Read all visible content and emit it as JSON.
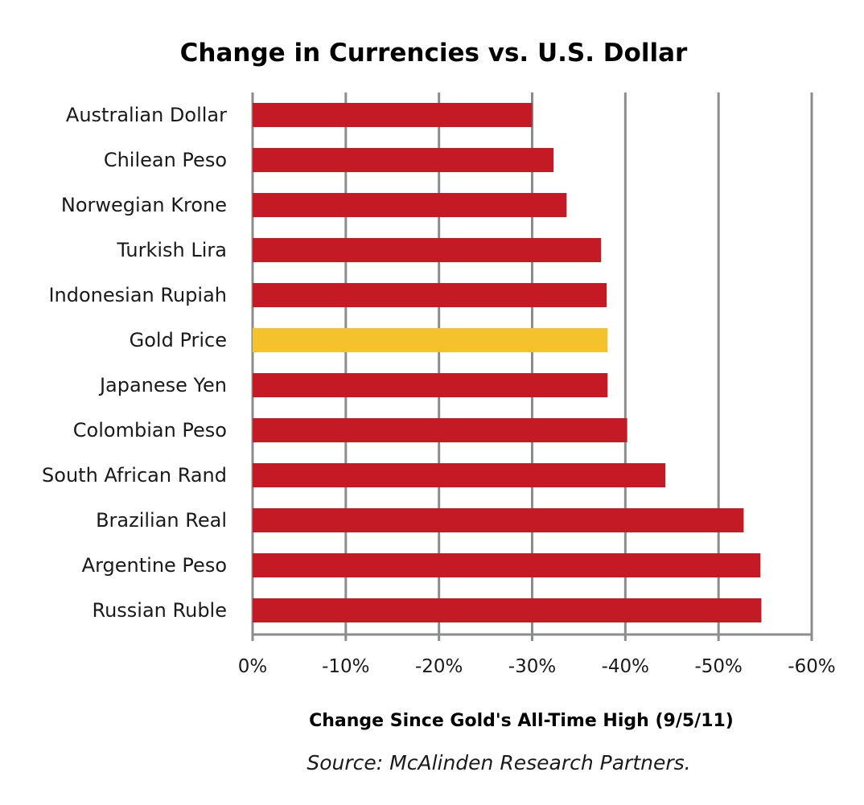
{
  "chart_data": {
    "type": "bar",
    "orientation": "horizontal",
    "title": "Change in Currencies vs. U.S. Dollar",
    "xlabel": "Change Since Gold's All-Time High (9/5/11)",
    "ylabel": "",
    "source": "Source: McAlinden Research Partners.",
    "categories": [
      "Australian Dollar",
      "Chilean Peso",
      "Norwegian Krone",
      "Turkish Lira",
      "Indonesian Rupiah",
      "Gold Price",
      "Japanese Yen",
      "Colombian Peso",
      "South African Rand",
      "Brazilian Real",
      "Argentine Peso",
      "Russian Ruble"
    ],
    "values": [
      -30.0,
      -32.3,
      -33.7,
      -37.4,
      -38.0,
      -38.1,
      -38.1,
      -40.2,
      -44.3,
      -52.7,
      -54.5,
      -54.6
    ],
    "highlight_category": "Gold Price",
    "xlim": [
      0,
      -60
    ],
    "xticks": [
      0,
      -10,
      -20,
      -30,
      -40,
      -50,
      -60
    ],
    "xtick_labels": [
      "0%",
      "-10%",
      "-20%",
      "-30%",
      "-40%",
      "-50%",
      "-60%"
    ],
    "grid": true,
    "legend": "none",
    "colors": {
      "bar": "#c41a25",
      "highlight": "#f3c22c",
      "grid": "#8c8c8c"
    }
  }
}
